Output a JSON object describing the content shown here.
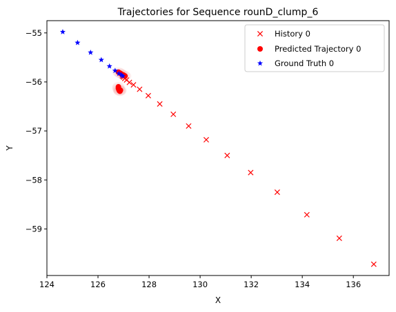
{
  "chart_data": {
    "type": "scatter",
    "title": "Trajectories for Sequence rounD_clump_6",
    "xlabel": "X",
    "ylabel": "Y",
    "xlim": [
      124,
      137.4
    ],
    "ylim": [
      -59.95,
      -54.75
    ],
    "xticks": [
      "124",
      "126",
      "128",
      "130",
      "132",
      "134",
      "136"
    ],
    "yticks": [
      "-55",
      "-56",
      "-57",
      "-58",
      "-59"
    ],
    "legend_placement": "top-right",
    "grid": false,
    "series": [
      {
        "name": "History 0",
        "marker": "x",
        "color": "#ff0000",
        "x": [
          136.8,
          135.45,
          134.18,
          133.02,
          131.98,
          131.06,
          130.24,
          129.55,
          128.95,
          128.42,
          127.97,
          127.63,
          127.39,
          127.23,
          127.12,
          127.05,
          127.0,
          126.96
        ],
        "y": [
          -59.72,
          -59.19,
          -58.71,
          -58.25,
          -57.85,
          -57.5,
          -57.18,
          -56.9,
          -56.66,
          -56.45,
          -56.28,
          -56.15,
          -56.06,
          -56.01,
          -55.96,
          -55.93,
          -55.9,
          -55.88
        ]
      },
      {
        "name": "Predicted Trajectory 0",
        "marker": "o",
        "color": "#ff0000",
        "x": [
          126.8,
          126.8,
          126.82,
          126.84,
          126.86,
          126.88,
          126.8,
          126.86,
          126.92,
          127.0,
          127.06
        ],
        "y": [
          -56.1,
          -56.13,
          -56.16,
          -56.18,
          -56.19,
          -56.17,
          -55.8,
          -55.82,
          -55.84,
          -55.86,
          -55.88
        ]
      },
      {
        "name": "Ground Truth 0",
        "marker": "*",
        "color": "#0000ff",
        "x": [
          124.62,
          125.2,
          125.71,
          126.13,
          126.45,
          126.67,
          126.82,
          126.92,
          126.97
        ],
        "y": [
          -54.98,
          -55.2,
          -55.4,
          -55.55,
          -55.68,
          -55.77,
          -55.83,
          -55.86,
          -55.88
        ]
      }
    ]
  }
}
